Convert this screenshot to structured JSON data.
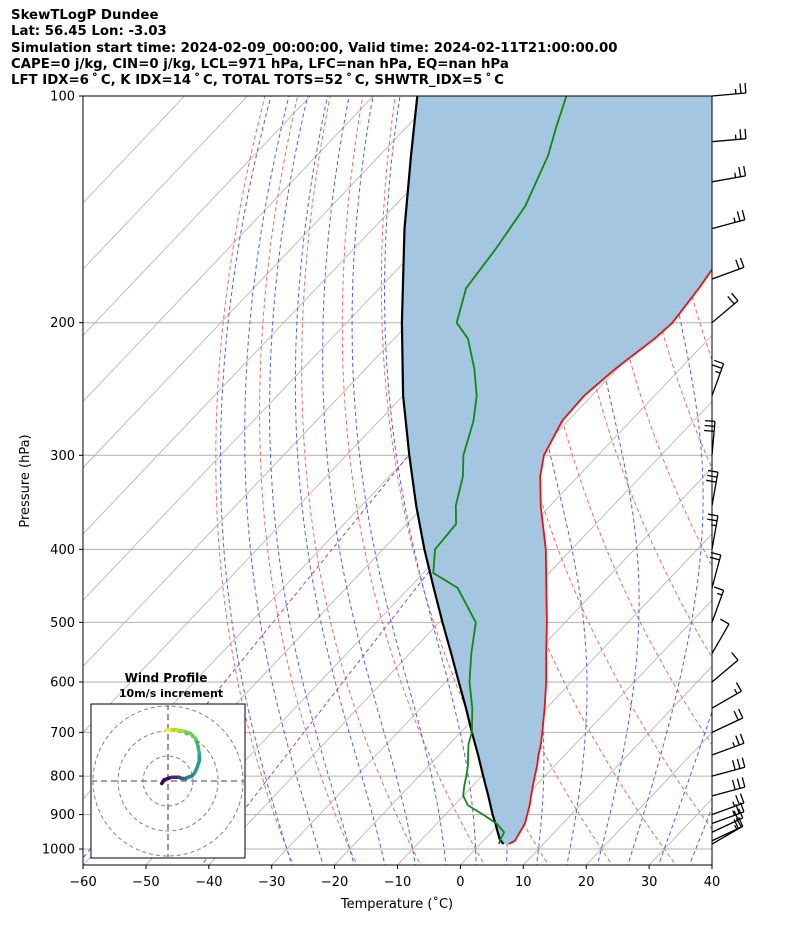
{
  "header": {
    "line1": "SkewTLogP Dundee",
    "line2": "Lat: 56.45   Lon: -3.03",
    "line3": "Simulation start time: 2024-02-09_00:00:00, Valid time: 2024-02-11T21:00:00.00",
    "line4": "CAPE=0 j/kg, CIN=0 j/kg, LCL=971 hPa, LFC=nan hPa, EQ=nan hPa",
    "line5": "LFT IDX=6 ˚ C, K IDX=14 ˚ C, TOTAL TOTS=52 ˚ C, SHWTR_IDX=5 ˚ C"
  },
  "colors": {
    "temperature": "#ee1111",
    "dewpoint": "#118811",
    "parcel": "#000000",
    "cape_shade": "#a4c6e0",
    "dry_adiabat": "#f06868",
    "moist_adiabat": "#5060ee",
    "mixing_ratio": "#a040c0",
    "isotherm": "#b0b0b0"
  },
  "chart_data": {
    "type": "skewt",
    "xlabel": "Temperature (˚C)",
    "ylabel": "Pressure (hPa)",
    "xlim": [
      -60,
      40
    ],
    "ylim": [
      1050,
      100
    ],
    "x_ticks": [
      "−60",
      "−50",
      "−40",
      "−30",
      "−20",
      "−10",
      "0",
      "10",
      "20",
      "30",
      "40"
    ],
    "y_ticks": [
      "100",
      "200",
      "300",
      "400",
      "500",
      "600",
      "700",
      "800",
      "900",
      "1000"
    ],
    "y_tick_values": [
      100,
      200,
      300,
      400,
      500,
      600,
      700,
      800,
      900,
      1000
    ],
    "grid": true,
    "temperature": {
      "p": [
        985,
        975,
        950,
        925,
        900,
        875,
        850,
        825,
        800,
        775,
        750,
        725,
        700,
        650,
        600,
        550,
        500,
        450,
        400,
        350,
        320,
        300,
        270,
        250,
        230,
        210,
        200,
        180,
        160,
        140,
        120,
        110,
        100
      ],
      "t": [
        4.5,
        5.0,
        4.5,
        4.0,
        3.0,
        2.0,
        0.8,
        -0.4,
        -1.6,
        -2.8,
        -4.2,
        -5.5,
        -7.0,
        -10.3,
        -14.0,
        -18.3,
        -22.9,
        -28.2,
        -34.1,
        -41.5,
        -46.0,
        -48.6,
        -50.9,
        -51.2,
        -50.3,
        -48.6,
        -48.2,
        -49.2,
        -50.7,
        -52.1,
        -53.9,
        -55.0,
        -55.2
      ]
    },
    "dewpoint": {
      "p": [
        985,
        975,
        950,
        925,
        900,
        875,
        850,
        825,
        800,
        775,
        750,
        725,
        700,
        650,
        600,
        550,
        500,
        450,
        430,
        400,
        370,
        350,
        320,
        300,
        270,
        250,
        230,
        210,
        200,
        180,
        160,
        140,
        120,
        110,
        100
      ],
      "t": [
        3.0,
        2.6,
        2.0,
        -0.5,
        -4.0,
        -7.8,
        -10.0,
        -11.3,
        -12.5,
        -13.8,
        -15.4,
        -17.0,
        -18.2,
        -21.8,
        -26.2,
        -30.2,
        -34.2,
        -42.3,
        -48.4,
        -51.7,
        -52.2,
        -55.0,
        -58.3,
        -61.4,
        -65.0,
        -68.3,
        -72.8,
        -78.3,
        -82.5,
        -86.2,
        -87.4,
        -89.2,
        -93.2,
        -96.2,
        -99.3
      ]
    },
    "parcel": {
      "p": [
        985,
        971,
        950,
        925,
        900,
        850,
        800,
        750,
        700,
        650,
        600,
        550,
        500,
        450,
        400,
        350,
        300,
        250,
        200,
        150,
        120,
        100
      ],
      "t": [
        3.7,
        2.4,
        1.0,
        -0.7,
        -2.5,
        -6.0,
        -9.8,
        -13.8,
        -18.2,
        -22.8,
        -27.9,
        -33.4,
        -39.5,
        -46.1,
        -53.4,
        -61.3,
        -70.0,
        -80.0,
        -91.2,
        -105.0,
        -115.0,
        -123.0
      ]
    },
    "wind_barbs": {
      "p": [
        985,
        975,
        950,
        925,
        900,
        850,
        800,
        750,
        700,
        650,
        600,
        550,
        500,
        450,
        400,
        350,
        300,
        250,
        200,
        175,
        150,
        130,
        115,
        100
      ],
      "speed_kt": [
        15,
        20,
        20,
        25,
        25,
        30,
        30,
        25,
        20,
        15,
        10,
        10,
        15,
        20,
        25,
        30,
        30,
        25,
        20,
        20,
        25,
        25,
        25,
        25
      ],
      "direction_deg": [
        240,
        245,
        245,
        250,
        250,
        255,
        255,
        250,
        245,
        240,
        230,
        210,
        200,
        195,
        190,
        190,
        185,
        200,
        230,
        250,
        255,
        260,
        265,
        265
      ]
    },
    "inset": {
      "title": "Wind Profile",
      "subtitle": "10m/s increment",
      "rings_ms": [
        10,
        20,
        30
      ],
      "hodograph_u": [
        -2.5,
        -1.5,
        0,
        1.5,
        3.0,
        4.5,
        5.5,
        6,
        7,
        8,
        9.5,
        10.5,
        11.5,
        12.5,
        12.5,
        12,
        11,
        9,
        6,
        3,
        0.5,
        -0.5,
        -0.5
      ],
      "hodograph_v": [
        -1,
        0.5,
        1,
        1.5,
        1.5,
        1.5,
        1,
        1,
        1,
        1.5,
        2,
        3,
        5,
        8,
        11,
        14,
        17,
        19,
        20,
        20.5,
        20.5,
        20.5,
        20.5
      ]
    }
  }
}
